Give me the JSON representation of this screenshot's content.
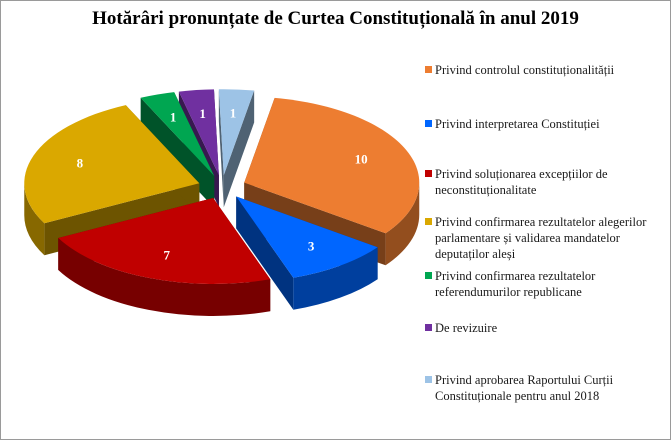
{
  "chart_data": {
    "type": "pie",
    "title": "Hotărâri pronunțate de Curtea Constituțională în anul 2019",
    "categories": [
      "Privind controlul constituționalității",
      "Privind interpretarea Constituției",
      "Privind soluționarea excepțiilor  de neconstituționalitate",
      "Privind confirmarea rezultatelor alegerilor parlamentare și validarea mandatelor deputaților aleși",
      "Privind confirmarea rezultatelor referendumurilor republicane",
      "De revizuire",
      "Privind aprobarea Raportului Curții Constituționale pentru anul 2018"
    ],
    "values": [
      10,
      3,
      7,
      8,
      1,
      1,
      1
    ],
    "data_labels": [
      "10",
      "3",
      "7",
      "8",
      "1",
      "1",
      "1"
    ],
    "colors": [
      "#ED7D31",
      "#0066FF",
      "#C00000",
      "#DAA800",
      "#00A651",
      "#7030A0",
      "#9DC3E6"
    ],
    "style": "3d-exploded-pie",
    "legend_position": "right"
  }
}
